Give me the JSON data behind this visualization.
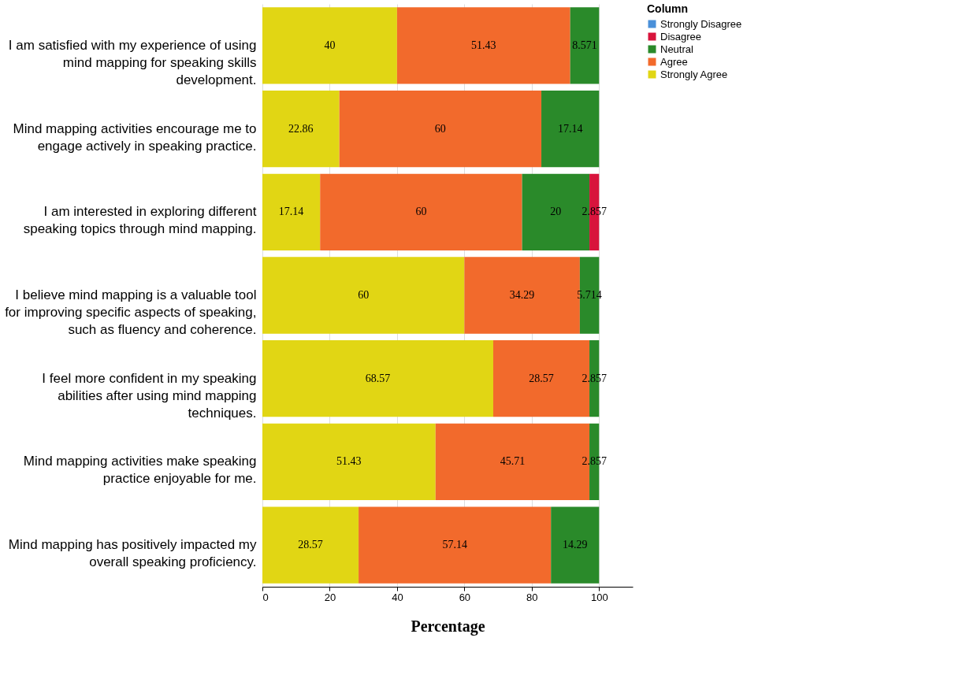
{
  "chart_data": {
    "type": "bar",
    "orientation": "horizontal",
    "stacked": true,
    "xlabel": "Percentage",
    "legend_title": "Column",
    "legend": "top right",
    "grid": "x",
    "categories": [
      "I am satisfied with my experience of using mind mapping for speaking skills development.",
      "Mind mapping activities encourage me to engage actively in speaking practice.",
      "I am interested in exploring different speaking topics through mind mapping.",
      "I believe mind mapping is a valuable tool for improving specific aspects of speaking, such as fluency and coherence.",
      "I feel more confident in my speaking abilities after using mind mapping techniques.",
      "Mind mapping activities make speaking practice enjoyable for me.",
      "Mind mapping has positively impacted my overall speaking proficiency."
    ],
    "xlim": [
      0,
      110
    ],
    "xticks": [
      0,
      20,
      40,
      60,
      80,
      100
    ],
    "data_labels": true,
    "series": [
      {
        "name": "Strongly Agree",
        "color": "#e1d614",
        "values": [
          40,
          22.86,
          17.14,
          60,
          68.57,
          51.43,
          28.57
        ]
      },
      {
        "name": "Agree",
        "color": "#f26a2c",
        "values": [
          51.43,
          60,
          60,
          34.29,
          28.57,
          45.71,
          57.14
        ]
      },
      {
        "name": "Neutral",
        "color": "#2a8a2a",
        "values": [
          8.571,
          17.14,
          20,
          5.714,
          2.857,
          2.857,
          14.29
        ]
      },
      {
        "name": "Disagree",
        "color": "#d8143c",
        "values": [
          null,
          null,
          2.857,
          null,
          null,
          null,
          null
        ]
      },
      {
        "name": "Strongly Disagree",
        "color": "#4a90d9",
        "values": [
          null,
          null,
          null,
          null,
          null,
          null,
          null
        ]
      }
    ]
  }
}
